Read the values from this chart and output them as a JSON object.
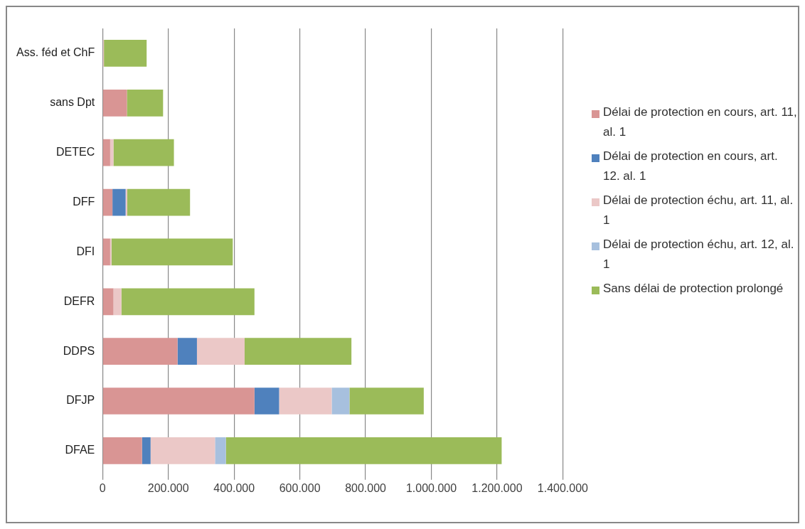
{
  "chart_data": {
    "type": "bar",
    "orientation": "horizontal",
    "stacked": true,
    "categories": [
      "Ass. féd et ChF",
      "sans Dpt",
      "DETEC",
      "DFF",
      "DFI",
      "DEFR",
      "DDPS",
      "DFJP",
      "DFAE"
    ],
    "series": [
      {
        "name": "Délai de protection en cours, art. 11, al. 1",
        "color": "#d99594",
        "values": [
          0,
          74000,
          23000,
          30000,
          23000,
          33000,
          228000,
          462000,
          120000
        ]
      },
      {
        "name": "Délai de protection en cours,  art. 12. al. 1",
        "color": "#4f81bd",
        "values": [
          null,
          null,
          0,
          40000,
          0,
          0,
          59000,
          75000,
          26000
        ]
      },
      {
        "name": "Délai de protection échu, art. 11, al. 1",
        "color": "#ebc8c7",
        "values": [
          4000,
          null,
          10000,
          5000,
          4000,
          24000,
          145000,
          160000,
          196000
        ]
      },
      {
        "name": "Délai de protection échu, art. 12, al. 1",
        "color": "#a7c0de",
        "values": [
          0,
          0,
          0,
          0,
          0,
          0,
          0,
          54000,
          33000
        ]
      },
      {
        "name": "Sans délai de protection prolongé",
        "color": "#9bbb59",
        "values": [
          130000,
          110000,
          184000,
          191000,
          369000,
          405000,
          325000,
          226000,
          839000
        ]
      }
    ],
    "xlim": [
      0,
      1400000
    ],
    "xticks": [
      0,
      {
        "value": 200000,
        "label": "200.000"
      },
      {
        "value": 400000,
        "label": "400.000"
      },
      {
        "value": 600000,
        "label": "600.000"
      },
      {
        "value": 800000,
        "label": "800.000"
      },
      {
        "value": 1000000,
        "label": "1.000.000"
      },
      {
        "value": 1200000,
        "label": "1.200.000"
      },
      {
        "value": 1400000,
        "label": "1.400.000"
      }
    ],
    "grid": "x",
    "legend": "right"
  }
}
